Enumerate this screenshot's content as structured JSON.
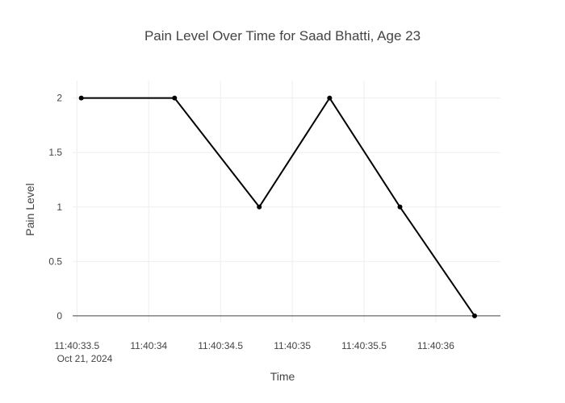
{
  "chart_data": {
    "type": "line",
    "title": "Pain Level Over Time for Saad Bhatti, Age 23",
    "xlabel": "Time",
    "ylabel": "Pain Level",
    "x_date_label": "Oct 21, 2024",
    "x": [
      33.53,
      34.18,
      34.77,
      35.26,
      35.75,
      36.27
    ],
    "y": [
      2,
      2,
      1,
      2,
      1,
      0
    ],
    "xlim": [
      33.47,
      36.45
    ],
    "ylim": [
      -0.06,
      2.16
    ],
    "x_ticks": [
      {
        "value": 33.5,
        "label": "11:40:33.5"
      },
      {
        "value": 34.0,
        "label": "11:40:34"
      },
      {
        "value": 34.5,
        "label": "11:40:34.5"
      },
      {
        "value": 35.0,
        "label": "11:40:35"
      },
      {
        "value": 35.5,
        "label": "11:40:35.5"
      },
      {
        "value": 36.0,
        "label": "11:40:36"
      }
    ],
    "y_ticks": [
      {
        "value": 0,
        "label": "0"
      },
      {
        "value": 0.5,
        "label": "0.5"
      },
      {
        "value": 1,
        "label": "1"
      },
      {
        "value": 1.5,
        "label": "1.5"
      },
      {
        "value": 2,
        "label": "2"
      }
    ],
    "grid": true,
    "line_color": "#000000",
    "marker_color": "#000000"
  }
}
